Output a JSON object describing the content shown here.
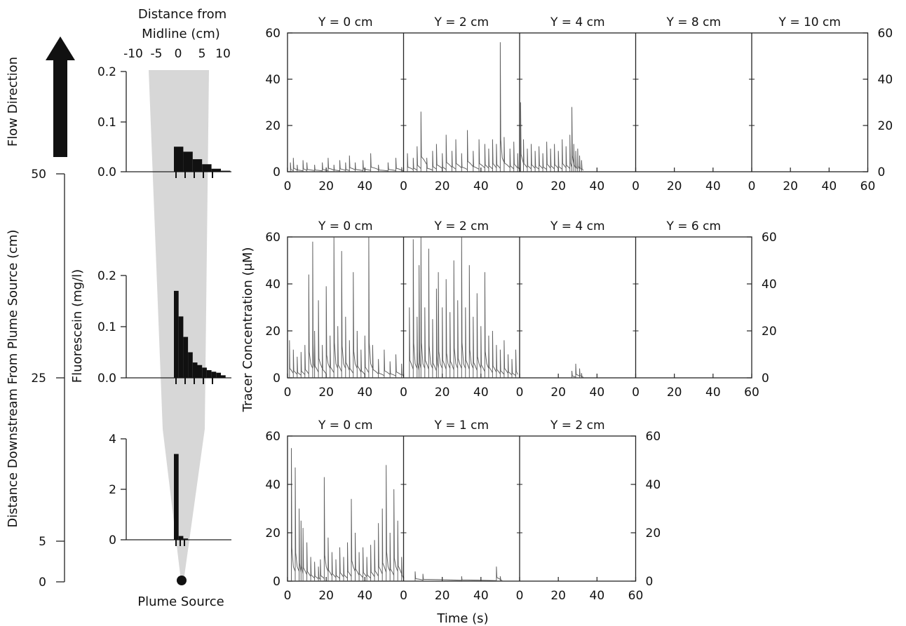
{
  "chart_data": {
    "type": "composite",
    "left_panel": {
      "flow_label": "Flow Direction",
      "distance_axis": {
        "label": "Distance Downstream From Plume Source (cm)",
        "ticks": [
          "50",
          "25",
          "5",
          "0"
        ]
      },
      "source_label": "Plume Source",
      "profile_x_label_line1": "Distance from",
      "profile_x_label_line2": "Midline (cm)",
      "profile_x_ticks": [
        "-10",
        "-5",
        "0",
        "5",
        "10"
      ],
      "profile_y_label": "Fluorescein (mg/l)",
      "profiles": [
        {
          "downstream_cm": 50,
          "yticks": [
            "0.2",
            "0.1",
            "0.0"
          ],
          "ylim": [
            0,
            0.2
          ],
          "x": [
            0,
            2,
            4,
            6,
            8,
            10
          ],
          "values": [
            0.05,
            0.04,
            0.025,
            0.015,
            0.006,
            0.002
          ]
        },
        {
          "downstream_cm": 25,
          "yticks": [
            "0.2",
            "0.1",
            "0.0"
          ],
          "ylim": [
            0,
            0.2
          ],
          "x": [
            0,
            1,
            2,
            3,
            4,
            5,
            6,
            7,
            8,
            9,
            10
          ],
          "values": [
            0.17,
            0.12,
            0.08,
            0.05,
            0.03,
            0.025,
            0.02,
            0.015,
            0.012,
            0.01,
            0.005
          ]
        },
        {
          "downstream_cm": 5,
          "yticks": [
            "4",
            "2",
            "0"
          ],
          "ylim": [
            0,
            4
          ],
          "x": [
            0,
            1,
            2
          ],
          "values": [
            3.4,
            0.15,
            0.05
          ]
        }
      ]
    },
    "time_series": {
      "xlabel": "Time (s)",
      "ylabel": "Tracer Concentration (μM)",
      "ylim": [
        0,
        60
      ],
      "rows": [
        {
          "downstream_cm": 50,
          "panels": [
            {
              "title": "Y = 0 cm",
              "peaks": [
                [
                  1.5,
                  4
                ],
                [
                  3,
                  6
                ],
                [
                  5,
                  3
                ],
                [
                  8,
                  5
                ],
                [
                  10,
                  4
                ],
                [
                  14,
                  3
                ],
                [
                  18,
                  4
                ],
                [
                  21,
                  6
                ],
                [
                  24,
                  3
                ],
                [
                  27,
                  5
                ],
                [
                  30,
                  4
                ],
                [
                  32,
                  7
                ],
                [
                  35,
                  4
                ],
                [
                  39,
                  5
                ],
                [
                  43,
                  8
                ],
                [
                  47,
                  3
                ],
                [
                  52,
                  4
                ],
                [
                  56,
                  6
                ],
                [
                  59,
                  2
                ]
              ]
            },
            {
              "title": "Y = 2 cm",
              "peaks": [
                [
                  2,
                  8
                ],
                [
                  5,
                  6
                ],
                [
                  7,
                  11
                ],
                [
                  9,
                  26
                ],
                [
                  12,
                  6
                ],
                [
                  15,
                  9
                ],
                [
                  17,
                  12
                ],
                [
                  20,
                  8
                ],
                [
                  22,
                  16
                ],
                [
                  25,
                  9
                ],
                [
                  27,
                  14
                ],
                [
                  30,
                  8
                ],
                [
                  33,
                  18
                ],
                [
                  36,
                  9
                ],
                [
                  39,
                  14
                ],
                [
                  42,
                  12
                ],
                [
                  44,
                  10
                ],
                [
                  46,
                  14
                ],
                [
                  48,
                  12
                ],
                [
                  50,
                  56
                ],
                [
                  52,
                  15
                ],
                [
                  55,
                  10
                ],
                [
                  57,
                  13
                ],
                [
                  59,
                  8
                ]
              ]
            },
            {
              "title": "Y = 4 cm",
              "peaks": [
                [
                  0.5,
                  30
                ],
                [
                  2,
                  14
                ],
                [
                  4,
                  10
                ],
                [
                  6,
                  12
                ],
                [
                  8,
                  9
                ],
                [
                  10,
                  11
                ],
                [
                  12,
                  8
                ],
                [
                  14,
                  13
                ],
                [
                  16,
                  10
                ],
                [
                  18,
                  12
                ],
                [
                  20,
                  9
                ],
                [
                  22,
                  14
                ],
                [
                  24,
                  11
                ],
                [
                  26,
                  16
                ],
                [
                  27,
                  28
                ],
                [
                  28,
                  12
                ],
                [
                  29,
                  9
                ],
                [
                  30,
                  10
                ],
                [
                  31,
                  7
                ],
                [
                  32,
                  5
                ]
              ]
            },
            {
              "title": "Y = 8 cm",
              "peaks": []
            },
            {
              "title": "Y = 10 cm",
              "peaks": []
            }
          ]
        },
        {
          "downstream_cm": 25,
          "panels": [
            {
              "title": "Y = 0 cm",
              "peaks": [
                [
                  1,
                  16
                ],
                [
                  3,
                  12
                ],
                [
                  5,
                  9
                ],
                [
                  7,
                  11
                ],
                [
                  9,
                  14
                ],
                [
                  11,
                  44
                ],
                [
                  13,
                  58
                ],
                [
                  14,
                  20
                ],
                [
                  16,
                  33
                ],
                [
                  18,
                  14
                ],
                [
                  20,
                  39
                ],
                [
                  22,
                  18
                ],
                [
                  24,
                  60
                ],
                [
                  26,
                  22
                ],
                [
                  28,
                  54
                ],
                [
                  30,
                  26
                ],
                [
                  32,
                  16
                ],
                [
                  34,
                  45
                ],
                [
                  36,
                  20
                ],
                [
                  38,
                  12
                ],
                [
                  40,
                  18
                ],
                [
                  42,
                  60
                ],
                [
                  44,
                  14
                ],
                [
                  47,
                  8
                ],
                [
                  50,
                  12
                ],
                [
                  53,
                  7
                ],
                [
                  56,
                  10
                ],
                [
                  59,
                  6
                ]
              ]
            },
            {
              "title": "Y = 2 cm",
              "peaks": [
                [
                  3,
                  30
                ],
                [
                  5,
                  59
                ],
                [
                  7,
                  26
                ],
                [
                  8,
                  48
                ],
                [
                  9,
                  60
                ],
                [
                  11,
                  30
                ],
                [
                  13,
                  55
                ],
                [
                  15,
                  25
                ],
                [
                  17,
                  38
                ],
                [
                  18,
                  45
                ],
                [
                  20,
                  30
                ],
                [
                  22,
                  42
                ],
                [
                  24,
                  28
                ],
                [
                  26,
                  50
                ],
                [
                  28,
                  33
                ],
                [
                  30,
                  60
                ],
                [
                  32,
                  30
                ],
                [
                  34,
                  48
                ],
                [
                  36,
                  26
                ],
                [
                  38,
                  36
                ],
                [
                  40,
                  22
                ],
                [
                  42,
                  45
                ],
                [
                  44,
                  18
                ],
                [
                  46,
                  20
                ],
                [
                  48,
                  14
                ],
                [
                  50,
                  12
                ],
                [
                  52,
                  16
                ],
                [
                  54,
                  10
                ],
                [
                  56,
                  8
                ],
                [
                  58,
                  12
                ]
              ]
            },
            {
              "title": "Y = 4 cm",
              "peaks": [
                [
                  27,
                  3
                ],
                [
                  29,
                  6
                ],
                [
                  31,
                  4
                ],
                [
                  32,
                  2
                ]
              ]
            },
            {
              "title": "Y = 6 cm",
              "peaks": []
            }
          ]
        },
        {
          "downstream_cm": 5,
          "panels": [
            {
              "title": "Y = 0 cm",
              "peaks": [
                [
                  2,
                  55
                ],
                [
                  4,
                  47
                ],
                [
                  6,
                  30
                ],
                [
                  7,
                  25
                ],
                [
                  8,
                  22
                ],
                [
                  10,
                  16
                ],
                [
                  12,
                  10
                ],
                [
                  14,
                  8
                ],
                [
                  16,
                  6
                ],
                [
                  17,
                  9
                ],
                [
                  19,
                  43
                ],
                [
                  21,
                  18
                ],
                [
                  23,
                  12
                ],
                [
                  25,
                  9
                ],
                [
                  27,
                  14
                ],
                [
                  29,
                  10
                ],
                [
                  31,
                  16
                ],
                [
                  33,
                  34
                ],
                [
                  35,
                  20
                ],
                [
                  37,
                  12
                ],
                [
                  39,
                  14
                ],
                [
                  41,
                  10
                ],
                [
                  43,
                  15
                ],
                [
                  45,
                  17
                ],
                [
                  47,
                  24
                ],
                [
                  49,
                  30
                ],
                [
                  51,
                  48
                ],
                [
                  53,
                  20
                ],
                [
                  55,
                  38
                ],
                [
                  57,
                  25
                ],
                [
                  59,
                  10
                ]
              ]
            },
            {
              "title": "Y = 1 cm",
              "peaks": [
                [
                  6,
                  4
                ],
                [
                  10,
                  3
                ],
                [
                  30,
                  2
                ],
                [
                  48,
                  6
                ],
                [
                  50,
                  2
                ]
              ]
            },
            {
              "title": "Y = 2 cm",
              "peaks": []
            }
          ]
        }
      ]
    }
  }
}
